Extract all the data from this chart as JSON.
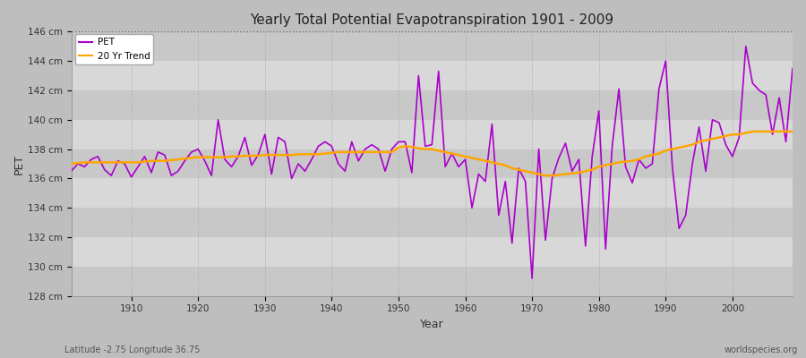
{
  "title": "Yearly Total Potential Evapotranspiration 1901 - 2009",
  "xlabel": "Year",
  "ylabel": "PET",
  "bottom_left_label": "Latitude -2.75 Longitude 36.75",
  "bottom_right_label": "worldspecies.org",
  "pet_color": "#AA00CC",
  "trend_color": "#FFA500",
  "fig_bg_color": "#BEBEBE",
  "plot_bg_color_light": "#D8D8D8",
  "plot_bg_color_dark": "#C8C8C8",
  "ylim": [
    128,
    146
  ],
  "yticks": [
    128,
    130,
    132,
    134,
    136,
    138,
    140,
    142,
    144,
    146
  ],
  "ytick_labels": [
    "128 cm",
    "130 cm",
    "132 cm",
    "134 cm",
    "136 cm",
    "138 cm",
    "140 cm",
    "142 cm",
    "144 cm",
    "146 cm"
  ],
  "years": [
    1901,
    1902,
    1903,
    1904,
    1905,
    1906,
    1907,
    1908,
    1909,
    1910,
    1911,
    1912,
    1913,
    1914,
    1915,
    1916,
    1917,
    1918,
    1919,
    1920,
    1921,
    1922,
    1923,
    1924,
    1925,
    1926,
    1927,
    1928,
    1929,
    1930,
    1931,
    1932,
    1933,
    1934,
    1935,
    1936,
    1937,
    1938,
    1939,
    1940,
    1941,
    1942,
    1943,
    1944,
    1945,
    1946,
    1947,
    1948,
    1949,
    1950,
    1951,
    1952,
    1953,
    1954,
    1955,
    1956,
    1957,
    1958,
    1959,
    1960,
    1961,
    1962,
    1963,
    1964,
    1965,
    1966,
    1967,
    1968,
    1969,
    1970,
    1971,
    1972,
    1973,
    1974,
    1975,
    1976,
    1977,
    1978,
    1979,
    1980,
    1981,
    1982,
    1983,
    1984,
    1985,
    1986,
    1987,
    1988,
    1989,
    1990,
    1991,
    1992,
    1993,
    1994,
    1995,
    1996,
    1997,
    1998,
    1999,
    2000,
    2001,
    2002,
    2003,
    2004,
    2005,
    2006,
    2007,
    2008,
    2009
  ],
  "pet": [
    136.5,
    137.0,
    136.8,
    137.3,
    137.5,
    136.6,
    136.2,
    137.2,
    137.0,
    136.1,
    136.8,
    137.5,
    136.4,
    137.8,
    137.6,
    136.2,
    136.5,
    137.2,
    137.8,
    138.0,
    137.2,
    136.2,
    140.0,
    137.3,
    136.8,
    137.5,
    138.8,
    136.9,
    137.6,
    139.0,
    136.3,
    138.8,
    138.5,
    136.0,
    137.0,
    136.5,
    137.3,
    138.2,
    138.5,
    138.2,
    137.0,
    136.5,
    138.5,
    137.2,
    138.0,
    138.3,
    138.0,
    136.5,
    138.0,
    138.5,
    138.5,
    136.4,
    143.0,
    138.2,
    138.3,
    143.3,
    136.8,
    137.7,
    136.8,
    137.3,
    134.0,
    136.3,
    135.8,
    139.7,
    133.5,
    135.8,
    131.6,
    136.7,
    135.8,
    129.2,
    138.0,
    131.8,
    136.0,
    137.4,
    138.4,
    136.5,
    137.3,
    131.4,
    137.5,
    140.6,
    131.2,
    138.2,
    142.1,
    136.8,
    135.7,
    137.3,
    136.7,
    137.0,
    142.1,
    144.0,
    136.8,
    132.6,
    133.5,
    137.0,
    139.5,
    136.5,
    140.0,
    139.8,
    138.3,
    137.5,
    138.8,
    145.0,
    142.5,
    142.0,
    141.7,
    139.0,
    141.5,
    138.5,
    143.5
  ],
  "trend": [
    137.0,
    137.05,
    137.1,
    137.1,
    137.1,
    137.1,
    137.1,
    137.1,
    137.1,
    137.1,
    137.1,
    137.15,
    137.2,
    137.2,
    137.2,
    137.25,
    137.3,
    137.35,
    137.4,
    137.45,
    137.45,
    137.45,
    137.45,
    137.45,
    137.5,
    137.5,
    137.55,
    137.55,
    137.55,
    137.6,
    137.6,
    137.6,
    137.6,
    137.6,
    137.65,
    137.65,
    137.65,
    137.65,
    137.7,
    137.75,
    137.8,
    137.8,
    137.8,
    137.8,
    137.8,
    137.8,
    137.8,
    137.8,
    137.8,
    138.1,
    138.2,
    138.15,
    138.05,
    138.0,
    138.0,
    137.9,
    137.8,
    137.7,
    137.6,
    137.5,
    137.4,
    137.3,
    137.2,
    137.1,
    137.0,
    136.9,
    136.7,
    136.6,
    136.5,
    136.4,
    136.3,
    136.2,
    136.2,
    136.25,
    136.3,
    136.35,
    136.4,
    136.5,
    136.6,
    136.8,
    136.9,
    137.0,
    137.1,
    137.15,
    137.2,
    137.3,
    137.5,
    137.6,
    137.7,
    137.9,
    138.0,
    138.1,
    138.2,
    138.3,
    138.5,
    138.6,
    138.7,
    138.8,
    138.9,
    139.0,
    139.0,
    139.1,
    139.2,
    139.2,
    139.2,
    139.2,
    139.2,
    139.2,
    139.2
  ]
}
